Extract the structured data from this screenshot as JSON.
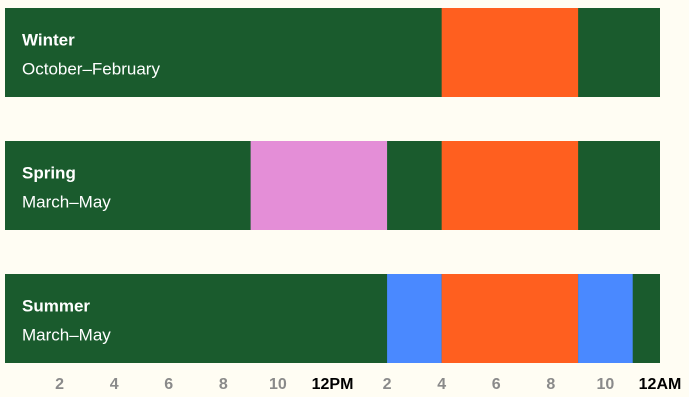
{
  "chart_data": {
    "type": "timeline",
    "xlim": [
      0,
      24
    ],
    "base_color": "#1a5b2d",
    "xticks": [
      2,
      4,
      6,
      8,
      10,
      {
        "value": 12,
        "label": "12PM"
      },
      {
        "value": 14,
        "label": "2"
      },
      {
        "value": 16,
        "label": "4"
      },
      {
        "value": 18,
        "label": "6"
      },
      {
        "value": 20,
        "label": "8"
      },
      {
        "value": 22,
        "label": "10"
      },
      {
        "value": 24,
        "label": "12AM"
      }
    ],
    "rows": [
      {
        "title": "Winter",
        "subtitle": "October–February",
        "segments": [
          {
            "start": 16,
            "end": 21,
            "color": "#ff5f1f"
          }
        ]
      },
      {
        "title": "Spring",
        "subtitle": "March–May",
        "segments": [
          {
            "start": 9,
            "end": 14,
            "color": "#e48ed7"
          },
          {
            "start": 16,
            "end": 21,
            "color": "#ff5f1f"
          }
        ]
      },
      {
        "title": "Summer",
        "subtitle": "March–May",
        "segments": [
          {
            "start": 14,
            "end": 16,
            "color": "#4a89ff"
          },
          {
            "start": 16,
            "end": 21,
            "color": "#ff5f1f"
          },
          {
            "start": 21,
            "end": 23,
            "color": "#4a89ff"
          }
        ]
      }
    ]
  }
}
